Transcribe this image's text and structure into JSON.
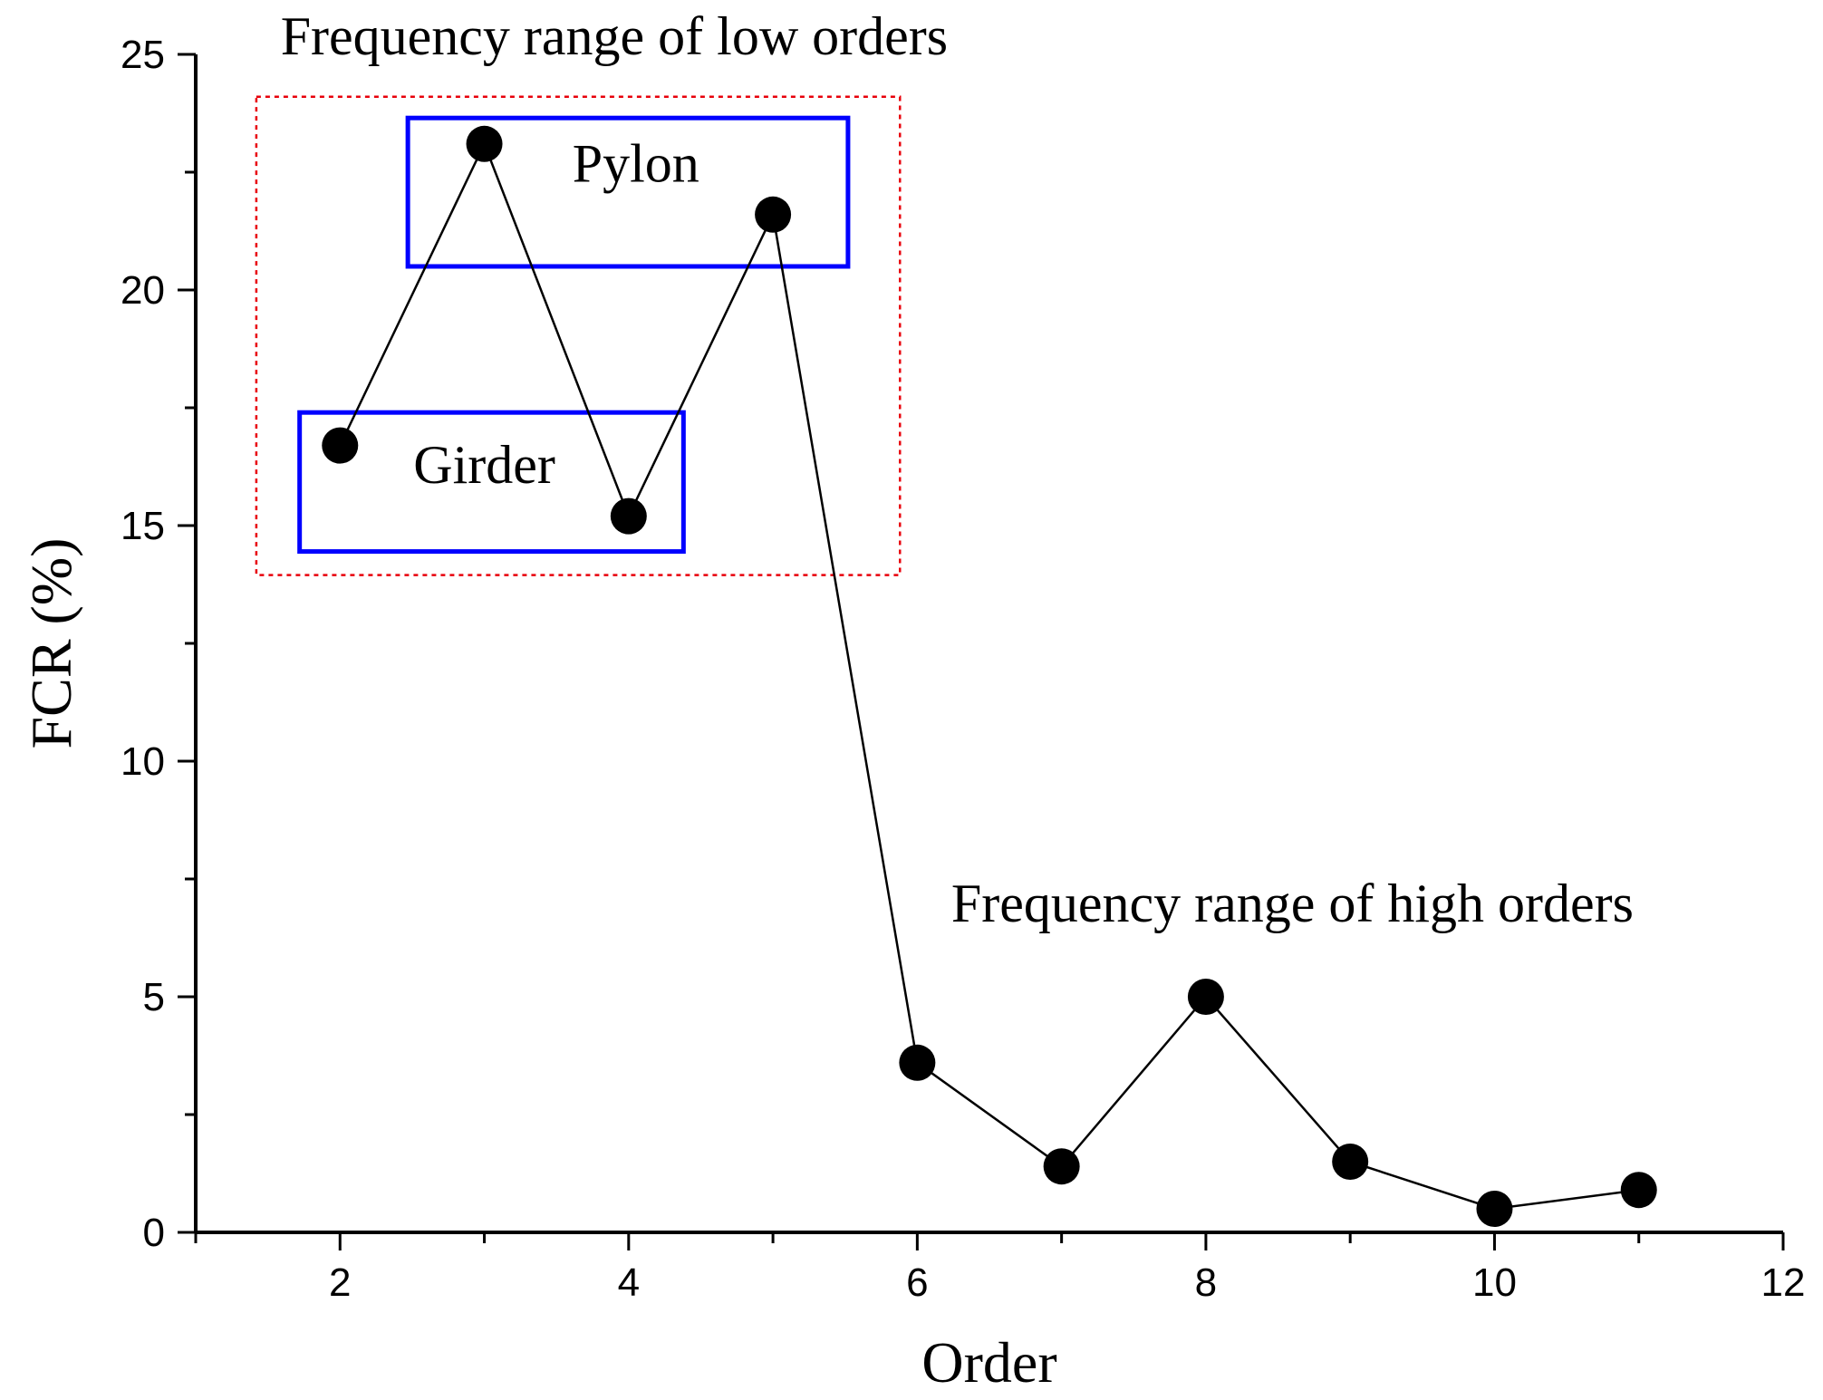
{
  "chart_data": {
    "type": "line",
    "xlabel": "Order",
    "ylabel": "FCR (%)",
    "xlim": [
      1,
      12
    ],
    "ylim": [
      0,
      25
    ],
    "x_ticks": [
      2,
      4,
      6,
      8,
      10,
      12
    ],
    "y_ticks": [
      0,
      5,
      10,
      15,
      20,
      25
    ],
    "x_minor_step": 1,
    "y_minor_step": 2.5,
    "grid": false,
    "legend": "none",
    "series": [
      {
        "x": [
          2,
          3,
          4,
          5,
          6,
          7,
          8,
          9,
          10,
          11
        ],
        "y": [
          16.7,
          23.1,
          15.2,
          21.6,
          3.6,
          1.4,
          5.0,
          1.5,
          0.5,
          0.9
        ],
        "color": "#000000",
        "marker": "filled-circle"
      }
    ],
    "annotations": [
      {
        "id": "low-orders",
        "text": "Frequency range of low orders",
        "at": [
          3.9,
          25.0
        ]
      },
      {
        "id": "high-orders",
        "text": "Frequency range of high orders",
        "at": [
          8.6,
          6.6
        ]
      },
      {
        "id": "pylon",
        "text": "Pylon",
        "at": [
          4.05,
          22.3
        ]
      },
      {
        "id": "girder",
        "text": "Girder",
        "at": [
          3.0,
          15.9
        ]
      }
    ],
    "regions": [
      {
        "id": "low-orders-region",
        "x": [
          1.42,
          5.88
        ],
        "y": [
          13.95,
          24.1
        ],
        "style": "dotted",
        "color": "#e8000b"
      },
      {
        "id": "pylon-box",
        "x": [
          2.47,
          5.52
        ],
        "y": [
          20.5,
          23.65
        ],
        "style": "solid",
        "color": "#0000ff"
      },
      {
        "id": "girder-box",
        "x": [
          1.72,
          4.38
        ],
        "y": [
          14.45,
          17.4
        ],
        "style": "solid",
        "color": "#0000ff"
      }
    ]
  }
}
